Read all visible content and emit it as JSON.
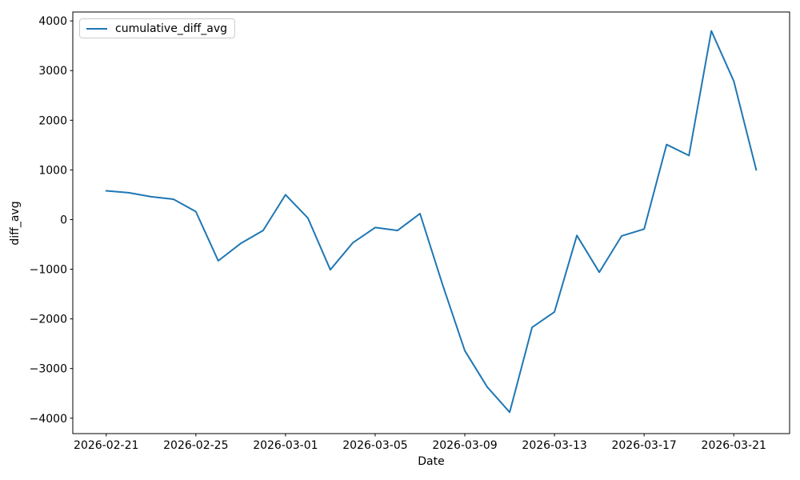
{
  "figure": {
    "background": "#ffffff",
    "text_color": "#000000"
  },
  "legend": {
    "label": "cumulative_diff_avg",
    "position": "upper-left",
    "line_color": "#1f77b4"
  },
  "chart_data": {
    "type": "line",
    "title": "",
    "xlabel": "Date",
    "ylabel": "diff_avg",
    "grid": false,
    "legend_position": "upper left",
    "line_color": "#1f77b4",
    "x": [
      "2026-02-21",
      "2026-02-22",
      "2026-02-23",
      "2026-02-24",
      "2026-02-25",
      "2026-02-26",
      "2026-02-27",
      "2026-02-28",
      "2026-03-01",
      "2026-03-02",
      "2026-03-03",
      "2026-03-04",
      "2026-03-05",
      "2026-03-06",
      "2026-03-07",
      "2026-03-08",
      "2026-03-09",
      "2026-03-10",
      "2026-03-11",
      "2026-03-12",
      "2026-03-13",
      "2026-03-14",
      "2026-03-15",
      "2026-03-16",
      "2026-03-17",
      "2026-03-18",
      "2026-03-19",
      "2026-03-20",
      "2026-03-21",
      "2026-03-22"
    ],
    "series": [
      {
        "name": "cumulative_diff_avg",
        "color": "#1f77b4",
        "values": [
          580,
          540,
          460,
          410,
          160,
          -830,
          -480,
          -220,
          500,
          30,
          -1010,
          -470,
          -160,
          -220,
          120,
          -1300,
          -2640,
          -3370,
          -3880,
          -2170,
          -1860,
          -320,
          -1060,
          -330,
          -190,
          1510,
          1290,
          3800,
          2790,
          1000
        ]
      }
    ],
    "xticks": [
      "2026-02-21",
      "2026-02-25",
      "2026-03-01",
      "2026-03-05",
      "2026-03-09",
      "2026-03-13",
      "2026-03-17",
      "2026-03-21"
    ],
    "yticks": [
      -4000,
      -3000,
      -2000,
      -1000,
      0,
      1000,
      2000,
      3000,
      4000
    ],
    "ylim": [
      -4310,
      4180
    ],
    "x_margin_days": 1.49
  }
}
